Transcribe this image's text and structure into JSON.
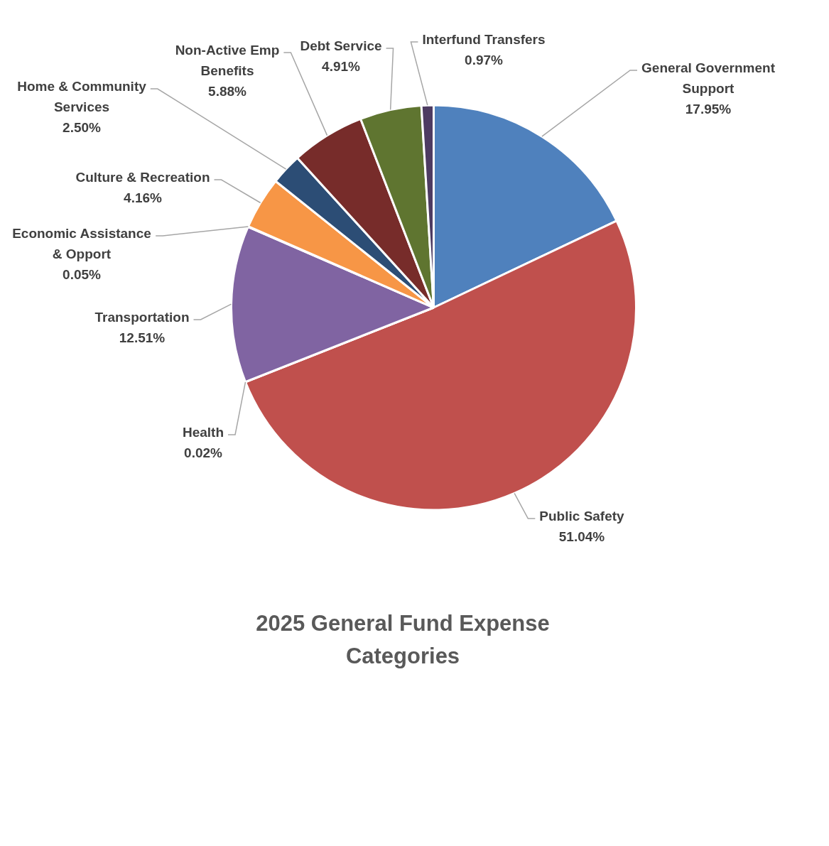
{
  "chart_data": {
    "type": "pie",
    "title": "2025 General Fund Expense Categories",
    "categories": [
      "General Government Support",
      "Public Safety",
      "Health",
      "Transportation",
      "Economic Assistance & Opport",
      "Culture & Recreation",
      "Home & Community Services",
      "Non-Active Emp Benefits",
      "Debt Service",
      "Interfund Transfers"
    ],
    "values": [
      17.95,
      51.04,
      0.02,
      12.51,
      0.05,
      4.16,
      2.5,
      5.88,
      4.91,
      0.97
    ],
    "value_labels": [
      "17.95%",
      "51.04%",
      "0.02%",
      "12.51%",
      "0.05%",
      "4.16%",
      "2.50%",
      "5.88%",
      "4.91%",
      "0.97%"
    ],
    "colors": [
      "#4f81bd",
      "#c0504d",
      "#9bbb59",
      "#8064a2",
      "#4bacc6",
      "#f79646",
      "#2c4d75",
      "#772c2a",
      "#5f7530",
      "#4d3b62"
    ],
    "legend": false
  }
}
